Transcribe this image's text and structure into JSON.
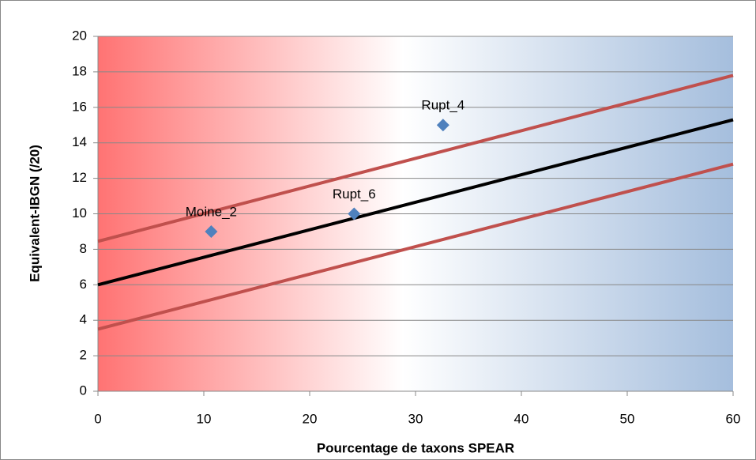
{
  "chart_data": {
    "type": "scatter",
    "xlabel": "Pourcentage de taxons SPEAR",
    "ylabel": "Equivalent-IBGN (/20)",
    "xlim": [
      0,
      60
    ],
    "xticks": [
      0,
      10,
      20,
      30,
      40,
      50,
      60
    ],
    "ylim": [
      0,
      20
    ],
    "yticks": [
      0,
      2,
      4,
      6,
      8,
      10,
      12,
      14,
      16,
      18,
      20
    ],
    "grid": true,
    "background_gradient": [
      "#ff7373",
      "#ffffff",
      "#a5bedd"
    ],
    "points": {
      "color": "#4f81bd",
      "x": [
        10.7,
        24.2,
        32.6
      ],
      "values": [
        9,
        10,
        15
      ],
      "labels": [
        "Moine_2",
        "Rupt_6",
        "Rupt_4"
      ]
    },
    "lines": [
      {
        "color": "#000000",
        "x": [
          0,
          60
        ],
        "values": [
          6,
          15.3
        ]
      },
      {
        "color": "#c0504d",
        "x": [
          0,
          60
        ],
        "values": [
          8.45,
          17.8
        ]
      },
      {
        "color": "#c0504d",
        "x": [
          0,
          60
        ],
        "values": [
          3.5,
          12.8
        ]
      }
    ]
  }
}
